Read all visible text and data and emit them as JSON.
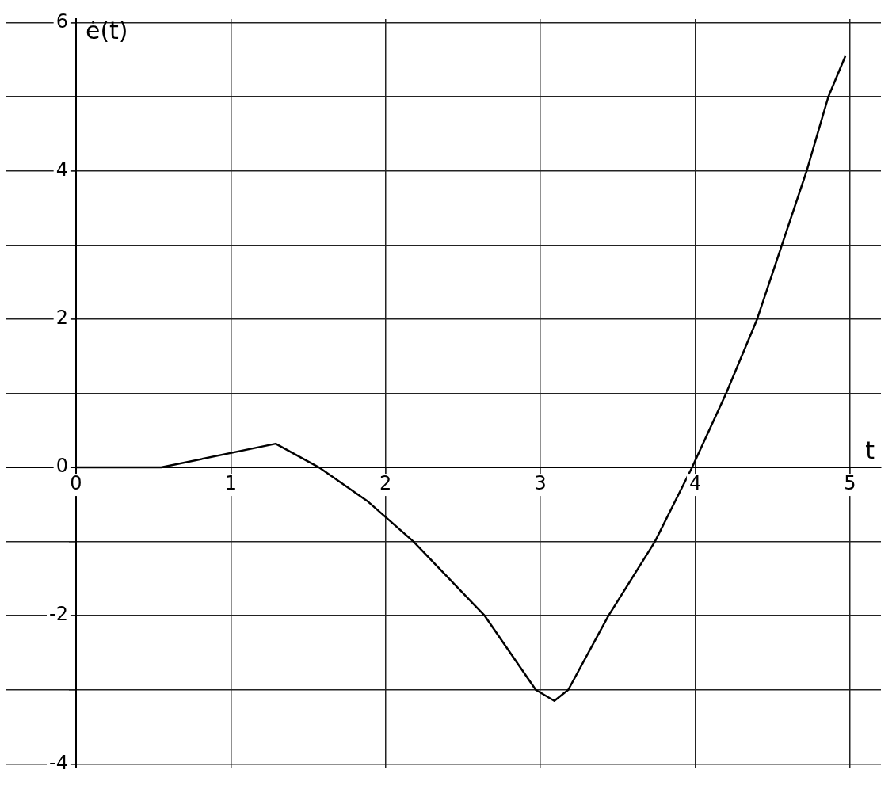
{
  "chart_data": {
    "type": "line",
    "xlabel": "t",
    "ylabel": "ė(t)",
    "x": [
      0,
      0.55,
      1.29,
      1.57,
      1.88,
      2.18,
      2.64,
      2.97,
      3.09,
      3.18,
      3.44,
      3.74,
      3.98,
      4.2,
      4.4,
      4.56,
      4.72,
      4.86,
      4.97
    ],
    "series": [
      {
        "color": "#000000",
        "values": [
          0,
          0,
          0.32,
          0,
          -0.45,
          -1,
          -2,
          -3,
          -3.15,
          -3,
          -2,
          -1,
          0,
          1,
          2,
          3,
          4,
          5,
          5.55
        ]
      }
    ],
    "xlim": [
      -0.45,
      5.2
    ],
    "ylim": [
      -4.05,
      6.05
    ],
    "xticks": [
      0,
      1,
      2,
      3,
      4,
      5
    ],
    "yticks": [
      -4,
      {
        "value": -3,
        "label": null
      },
      -2,
      {
        "value": -1,
        "label": null
      },
      0,
      {
        "value": 1,
        "label": null
      },
      2,
      {
        "value": 3,
        "label": null
      },
      4,
      {
        "value": 5,
        "label": null
      },
      6
    ],
    "grid": true,
    "marker": "none",
    "line_style": "solid",
    "legend": false
  }
}
